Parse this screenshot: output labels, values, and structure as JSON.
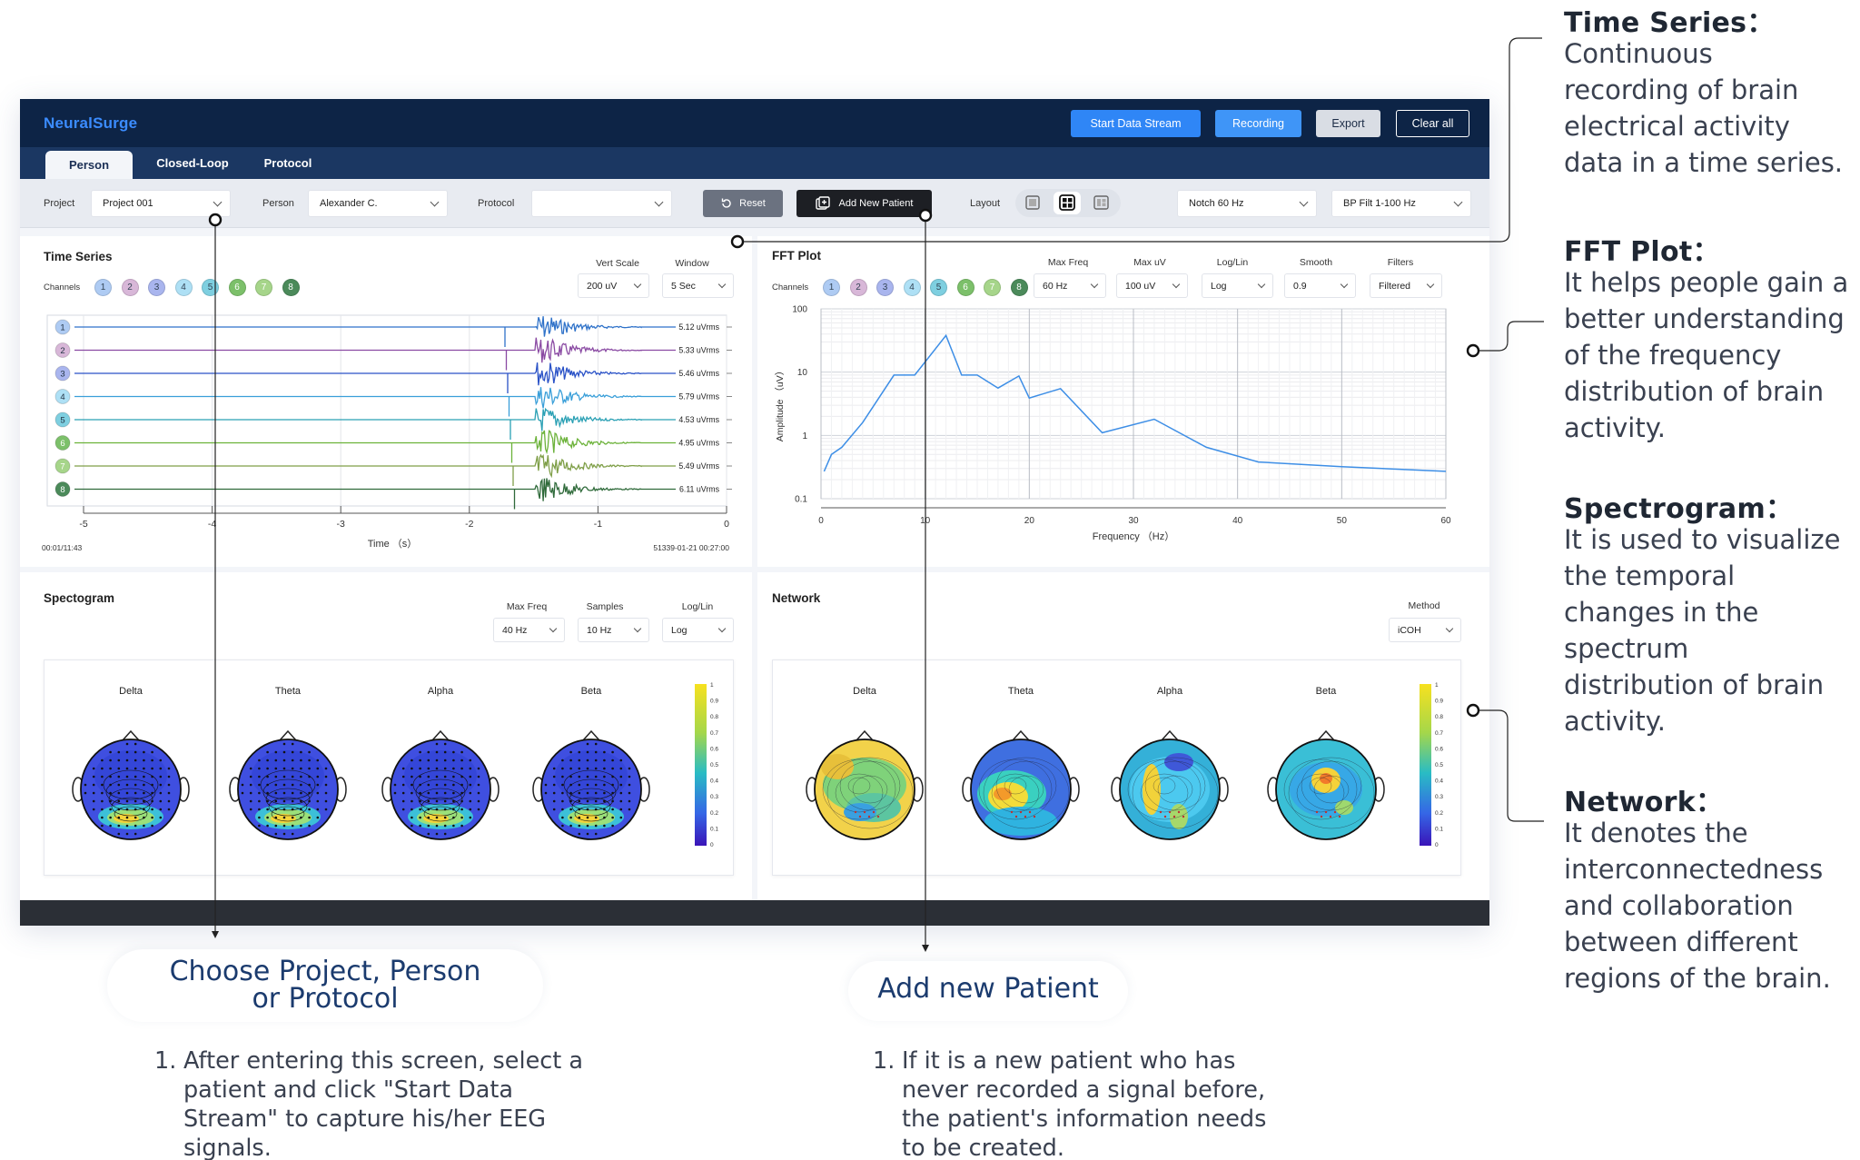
{
  "app": {
    "logo": "NeuralSurge"
  },
  "topbar": {
    "start": "Start Data Stream",
    "recording": "Recording",
    "export": "Export",
    "clear": "Clear all"
  },
  "tabs": [
    "Person",
    "Closed-Loop",
    "Protocol"
  ],
  "toolbar": {
    "project_label": "Project",
    "project_value": "Project  001",
    "person_label": "Person",
    "person_value": "Alexander C.",
    "protocol_label": "Protocol",
    "protocol_value": "",
    "reset": "Reset",
    "add_patient": "Add New Patient",
    "layout_label": "Layout",
    "notch": "Notch 60 Hz",
    "bp": "BP Filt 1-100 Hz"
  },
  "time_series": {
    "title": "Time Series",
    "channels_label": "Channels",
    "vert_scale_label": "Vert Scale",
    "vert_scale": "200 uV",
    "window_label": "Window",
    "window": "5 Sec",
    "channels": [
      "1",
      "2",
      "3",
      "4",
      "5",
      "6",
      "7",
      "8"
    ],
    "channel_colors": [
      "#aecbf3",
      "#d8b7d8",
      "#a9b5ee",
      "#aee0f5",
      "#7ecfe0",
      "#7cc06a",
      "#a6d58a",
      "#4b8a5a"
    ],
    "trace_colors": [
      "#2f72c9",
      "#8a4aa3",
      "#2a52c7",
      "#3a9fd9",
      "#2aa0b4",
      "#6cb23a",
      "#7f9f48",
      "#2f6a3a"
    ],
    "rms": [
      "5.12 uVrms",
      "5.33 uVrms",
      "5.46 uVrms",
      "5.79 uVrms",
      "4.53 uVrms",
      "4.95 uVrms",
      "5.49 uVrms",
      "6.11 uVrms"
    ],
    "x_ticks": [
      "-5",
      "-4",
      "-3",
      "-2",
      "-1",
      "0"
    ],
    "xlabel": "Time （s）",
    "left_stamp": "00:01/11:43",
    "right_stamp": "51339-01-21 00:27:00"
  },
  "fft": {
    "title": "FFT Plot",
    "channels_label": "Channels",
    "maxfreq_label": "Max Freq",
    "maxfreq": "60 Hz",
    "maxuv_label": "Max uV",
    "maxuv": "100 uV",
    "loglin_label": "Log/Lin",
    "loglin": "Log",
    "smooth_label": "Smooth",
    "smooth": "0.9",
    "filters_label": "Filters",
    "filters": "Filtered"
  },
  "chart_data": {
    "type": "line",
    "xlabel": "Frequency （Hz）",
    "ylabel": "Amplitude （uV）",
    "xlim": [
      0,
      60
    ],
    "ylim": [
      0.1,
      100
    ],
    "yscale": "log",
    "x_ticks": [
      "0",
      "10",
      "20",
      "30",
      "40",
      "50",
      "60"
    ],
    "y_ticks": [
      "0.1",
      "1",
      "10",
      "100"
    ],
    "x": [
      0.3,
      1,
      2,
      4,
      7,
      9,
      12,
      13.5,
      15,
      17,
      19,
      20,
      23,
      27,
      32,
      37,
      42,
      50,
      60
    ],
    "y": [
      0.27,
      0.5,
      0.65,
      1.6,
      9,
      9,
      38,
      9,
      9,
      5.6,
      8.7,
      3.9,
      5.5,
      1.1,
      1.8,
      0.65,
      0.38,
      0.32,
      0.27
    ]
  },
  "spectrogram": {
    "title": "Spectogram",
    "maxfreq_label": "Max Freq",
    "maxfreq": "40 Hz",
    "samples_label": "Samples",
    "samples": "10 Hz",
    "loglin_label": "Log/Lin",
    "loglin": "Log",
    "bands": [
      "Delta",
      "Theta",
      "Alpha",
      "Beta"
    ],
    "scale": [
      "1",
      "0.9",
      "0.8",
      "0.7",
      "0.6",
      "0.5",
      "0.4",
      "0.3",
      "0.2",
      "0.1",
      "0"
    ]
  },
  "network": {
    "title": "Network",
    "method_label": "Method",
    "method": "iCOH",
    "bands": [
      "Delta",
      "Theta",
      "Alpha",
      "Beta"
    ],
    "scale": [
      "1",
      "0.9",
      "0.8",
      "0.7",
      "0.6",
      "0.5",
      "0.4",
      "0.3",
      "0.2",
      "0.1",
      "0"
    ]
  },
  "annotations": {
    "ts_h": "Time Series：",
    "ts_t": [
      "Continuous",
      "recording of brain",
      "electrical activity",
      "data in a time series."
    ],
    "fft_h": "FFT Plot：",
    "fft_t": [
      "It helps people gain a",
      "better understanding",
      "of the frequency",
      "distribution of brain",
      "activity."
    ],
    "sp_h": "Spectrogram：",
    "sp_t": [
      "It is used to visualize",
      "the temporal",
      "changes in the",
      "spectrum",
      "distribution of brain",
      "activity."
    ],
    "net_h": "Network：",
    "net_t": [
      "It denotes the",
      "interconnectedness",
      "and collaboration",
      "between different",
      "regions of the brain."
    ],
    "choose_1": "Choose Project, Person",
    "choose_2": "or Protocol",
    "add_patient": "Add new Patient",
    "note1_num": "1.",
    "note1": [
      "After entering this screen, select a",
      "patient and click \"Start Data",
      "Stream\" to capture his/her EEG",
      "signals."
    ],
    "note2_num": "1.",
    "note2": [
      "If it is a new patient who has",
      "never recorded a signal before,",
      "the patient's information needs",
      "to be created."
    ]
  }
}
